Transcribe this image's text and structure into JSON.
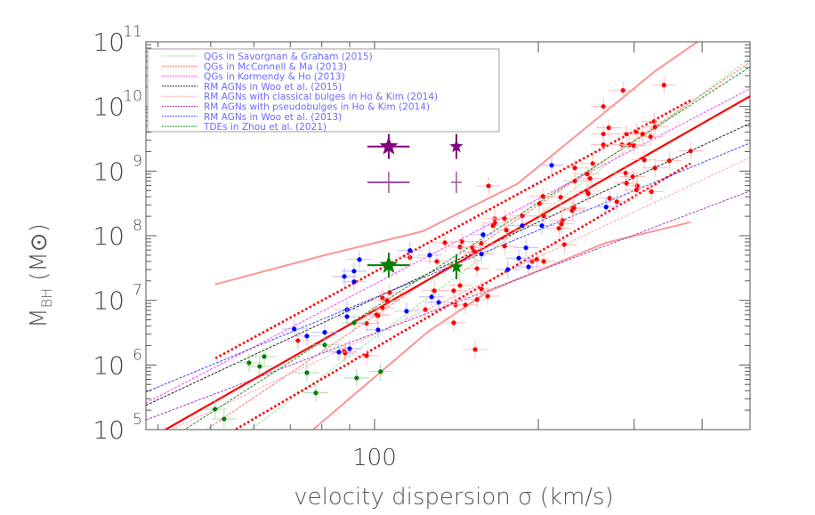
{
  "chart_data": {
    "type": "scatter",
    "xlabel": "velocity dispersion σ (km/s)",
    "ylabel_main": "M",
    "ylabel_sub": "BH",
    "ylabel_unit": "(M⊙)",
    "x_scale": "log",
    "y_scale": "log",
    "xlim": [
      38,
      490
    ],
    "ylim": [
      100000,
      100000000000
    ],
    "x_tick_labels": [
      {
        "value": 100,
        "label": "100"
      }
    ],
    "x_major_ticks": [
      100,
      200,
      300,
      400
    ],
    "x_minor_ticks": [
      40,
      50,
      60,
      70,
      80,
      90
    ],
    "y_tick_labels": [
      {
        "value": 100000,
        "base": "10",
        "exp": "5"
      },
      {
        "value": 1000000,
        "base": "10",
        "exp": "6"
      },
      {
        "value": 10000000,
        "base": "10",
        "exp": "7"
      },
      {
        "value": 100000000,
        "base": "10",
        "exp": "8"
      },
      {
        "value": 1000000000,
        "base": "10",
        "exp": "9"
      },
      {
        "value": 10000000000,
        "base": "10",
        "exp": "10"
      },
      {
        "value": 100000000000,
        "base": "10",
        "exp": "11"
      }
    ],
    "grid": false,
    "legend_placement": "top-left",
    "legend": [
      {
        "label": "QGs in Savorgnan & Graham (2015)",
        "color": "#90e890",
        "relation": {
          "log_mbh_at_sigma200": 8.31,
          "slope": 6.26
        }
      },
      {
        "label": "QGs in McConnell & Ma (2013)",
        "color": "#ff7070",
        "relation": {
          "log_mbh_at_sigma200": 8.47,
          "slope": 5.69
        }
      },
      {
        "label": "QGs in Kormendy & Ho (2013)",
        "color": "#ff40ff",
        "relation": {
          "log_mbh_at_sigma200": 8.57,
          "slope": 4.38
        }
      },
      {
        "label": "RM AGNs in Woo et al. (2015)",
        "color": "#202020",
        "relation": {
          "log_mbh_at_sigma200": 8.21,
          "slope": 3.93
        }
      },
      {
        "label": "RM AGNs with classical bulges in Ho & Kim (2014)",
        "color": "#ffa8a8",
        "relation": {
          "log_mbh_at_sigma200": 7.67,
          "slope": 3.96
        }
      },
      {
        "label": "RM AGNs with pseudobulges in Ho & Kim (2014)",
        "color": "#a040b0",
        "relation": {
          "log_mbh_at_sigma200": 7.45,
          "slope": 3.19
        }
      },
      {
        "label": "RM AGNs in Woo et al. (2013)",
        "color": "#4040ff",
        "relation": {
          "log_mbh_at_sigma200": 8.085,
          "slope": 3.47
        }
      },
      {
        "label": "TDEs in Zhou et al. (2021)",
        "color": "#209020",
        "relation": {
          "log_mbh_at_sigma200": 8.51,
          "slope": 5.4
        }
      }
    ],
    "fit_lines": [
      {
        "style": "solid-thick",
        "color": "#ff0000",
        "log_mbh_at_sigma200": 8.29,
        "slope": 4.8
      },
      {
        "style": "dotted-thick",
        "color": "#ff0000",
        "log_mbh_at_sigma200": 8.815,
        "slope": 4.57,
        "sigma_range": [
          51,
          384
        ]
      },
      {
        "style": "dotted-thick",
        "color": "#ff0000",
        "log_mbh_at_sigma200": 7.74,
        "slope": 4.92,
        "sigma_range": [
          55.6,
          381
        ]
      }
    ],
    "curves": [
      {
        "color": "#ff8080",
        "points": [
          [
            50.9,
            17600000
          ],
          [
            81,
            50000000
          ],
          [
            122.6,
            117000000
          ],
          [
            182.8,
            630000000
          ],
          [
            327.7,
            35000000000
          ],
          [
            403,
            117000000000
          ]
        ]
      },
      {
        "color": "#ff8080",
        "points": [
          [
            77.1,
            100000
          ],
          [
            125.4,
            3270000
          ],
          [
            161.3,
            13600000
          ],
          [
            266.5,
            78200000
          ],
          [
            381,
            162000000
          ]
        ]
      }
    ],
    "series": [
      {
        "color": "#ff0000",
        "points": [
          [
            134.7,
            78000000
          ],
          [
            116.2,
            46000000
          ],
          [
            130.2,
            40000000
          ],
          [
            106.6,
            13200000
          ],
          [
            103.4,
            10900000
          ],
          [
            105.4,
            9900000
          ],
          [
            103.4,
            7700000
          ],
          [
            100.8,
            6000000
          ],
          [
            101.5,
            5800000
          ],
          [
            96.7,
            4400000
          ],
          [
            72.3,
            2380000
          ],
          [
            88.0,
            1630000
          ],
          [
            88.3,
            1530000
          ],
          [
            96.7,
            1390000
          ],
          [
            124.0,
            7200000
          ],
          [
            128.8,
            14100000
          ],
          [
            162.0,
            590000000
          ],
          [
            203.9,
            406000000
          ],
          [
            200.9,
            315000000
          ],
          [
            248.9,
            770000000
          ],
          [
            246.0,
            490000000
          ],
          [
            247.1,
            447000000
          ],
          [
            231.7,
            261000000
          ],
          [
            230.8,
            245000000
          ],
          [
            166.3,
            184000000
          ],
          [
            173.4,
            184000000
          ],
          [
            166.3,
            157000000
          ],
          [
            165.1,
            143000000
          ],
          [
            186.9,
            202000000
          ],
          [
            204.6,
            202000000
          ],
          [
            221.4,
            173000000
          ],
          [
            220.6,
            152000000
          ],
          [
            218.2,
            130000000
          ],
          [
            174.7,
            122000000
          ],
          [
            144.7,
            81000000
          ],
          [
            143.6,
            67000000
          ],
          [
            157.2,
            76000000
          ],
          [
            151.4,
            65000000
          ],
          [
            152.5,
            57000000
          ],
          [
            153.1,
            55000000
          ],
          [
            173.4,
            69000000
          ],
          [
            223.2,
            73000000
          ],
          [
            194.9,
            40000000
          ],
          [
            198.6,
            43000000
          ],
          [
            204.6,
            40000000
          ],
          [
            154.3,
            31000000
          ],
          [
            143.6,
            17000000
          ],
          [
            139.8,
            14100000
          ],
          [
            157.2,
            15000000
          ],
          [
            161.4,
            11600000
          ],
          [
            154.3,
            10300000
          ],
          [
            140.9,
            8500000
          ],
          [
            146.9,
            8500000
          ],
          [
            139.8,
            4500000
          ],
          [
            153.1,
            1740000
          ],
          [
            340.4,
            21400000000
          ],
          [
            286.2,
            17700000000
          ],
          [
            263.4,
            10000000000
          ],
          [
            269.4,
            4670000000
          ],
          [
            263.4,
            3740000000
          ],
          [
            263.4,
            2560000000
          ],
          [
            290.5,
            3740000000
          ],
          [
            302.8,
            3990000000
          ],
          [
            310.9,
            3740000000
          ],
          [
            321.6,
            3400000000
          ],
          [
            326.5,
            5840000000
          ],
          [
            327.7,
            4820000000
          ],
          [
            285.1,
            2560000000
          ],
          [
            293.8,
            2560000000
          ],
          [
            299.4,
            2480000000
          ],
          [
            313.2,
            1490000000
          ],
          [
            348.2,
            1450000000
          ],
          [
            381.1,
            2050000000
          ],
          [
            327.7,
            1120000000
          ],
          [
            289.4,
            930000000
          ],
          [
            298.3,
            820000000
          ],
          [
            290.5,
            650000000
          ],
          [
            304.0,
            590000000
          ],
          [
            302.8,
            510000000
          ],
          [
            322.8,
            480000000
          ],
          [
            233.4,
            1120000000
          ],
          [
            251.8,
            1310000000
          ],
          [
            246.0,
            900000000
          ],
          [
            233.4,
            700000000
          ],
          [
            219.8,
            394000000
          ],
          [
            270.4,
            381000000
          ],
          [
            278.8,
            336000000
          ],
          [
            232.6,
            269000000
          ]
        ]
      },
      {
        "color": "#0000ff",
        "points": [
          [
            93.8,
            42800000
          ],
          [
            88.0,
            23400000
          ],
          [
            91.7,
            28300000
          ],
          [
            91.7,
            19400000
          ],
          [
            116.2,
            59000000
          ],
          [
            126.3,
            50000000
          ],
          [
            89.0,
            7200000
          ],
          [
            89.0,
            5600000
          ],
          [
            71.2,
            3600000
          ],
          [
            75.1,
            2800000
          ],
          [
            81.0,
            3200000
          ],
          [
            86.0,
            1580000
          ],
          [
            90.0,
            1790000
          ],
          [
            101.5,
            3500000
          ],
          [
            114.5,
            6800000
          ],
          [
            127.3,
            11300000
          ],
          [
            131.2,
            9300000
          ],
          [
            158.3,
            104000000
          ],
          [
            157.2,
            52000000
          ],
          [
            186.9,
            143000000
          ],
          [
            203.0,
            143000000
          ],
          [
            189.8,
            65000000
          ],
          [
            184.1,
            45000000
          ],
          [
            191.9,
            33000000
          ],
          [
            175.8,
            30000000
          ],
          [
            266.5,
            278000000
          ],
          [
            211.6,
            1230000000
          ]
        ]
      },
      {
        "color": "#008000",
        "points": [
          [
            50.9,
            207000
          ],
          [
            52.9,
            146000
          ],
          [
            58.8,
            1080000
          ],
          [
            61.5,
            950000
          ],
          [
            62.7,
            1350000
          ],
          [
            75.1,
            760000
          ],
          [
            78.0,
            370000
          ],
          [
            81.0,
            2040000
          ],
          [
            91.7,
            4500000
          ],
          [
            92.7,
            630000
          ],
          [
            102.6,
            790000
          ]
        ]
      }
    ],
    "special_markers": [
      {
        "marker": "star-large",
        "color": "#800080",
        "x": 106.2,
        "y": 2400000000,
        "x_err": [
          97,
          116
        ]
      },
      {
        "marker": "star-small",
        "color": "#800080",
        "x": 141.4,
        "y": 2400000000
      },
      {
        "marker": "cross",
        "color": "#a050a0",
        "x": 106.2,
        "y": 670000000,
        "x_err": [
          97,
          116
        ]
      },
      {
        "marker": "cross",
        "color": "#a050a0",
        "x": 141.4,
        "y": 670000000
      },
      {
        "marker": "star-large",
        "color": "#008000",
        "x": 106.2,
        "y": 35000000,
        "x_err": [
          97,
          116
        ]
      },
      {
        "marker": "star-small",
        "color": "#008000",
        "x": 141.4,
        "y": 33000000
      }
    ]
  }
}
